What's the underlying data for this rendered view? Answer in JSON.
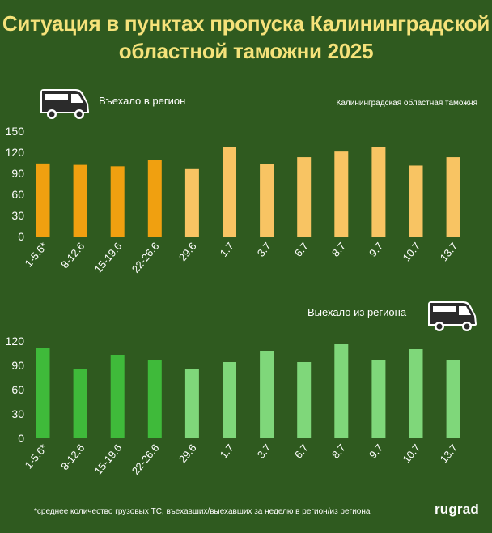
{
  "title_lines": [
    "Ситуация в пунктах пропуска Калининградской",
    "областной таможни 2025"
  ],
  "source": "Калининградская областная таможня",
  "footnote": "*среднее количество грузовых ТС, въехавших/выехавших за неделю в регион/из региона",
  "brand": "rugrad",
  "icons": {
    "truck": "van-icon"
  },
  "colors": {
    "background": "#2f5a1f",
    "title": "#f5e27a",
    "entered_weekly": "#f0a010",
    "entered_daily": "#f8c463",
    "exited_weekly": "#3fba3a",
    "exited_daily": "#7fd77a"
  },
  "chart_data": [
    {
      "type": "bar",
      "legend": "Въехало в регион",
      "categories": [
        "1-5.6*",
        "8-12.6",
        "15-19.6",
        "22-26.6",
        "29.6",
        "1.7",
        "3.7",
        "6.7",
        "8.7",
        "9.7",
        "10.7",
        "13.7"
      ],
      "values": [
        104,
        102,
        100,
        109,
        96,
        128,
        103,
        113,
        121,
        127,
        101,
        113
      ],
      "yticks": [
        0,
        30,
        60,
        90,
        120,
        150
      ],
      "ylim": [
        0,
        150
      ],
      "grid": false
    },
    {
      "type": "bar",
      "legend": "Выехало из региона",
      "categories": [
        "1-5.6*",
        "8-12.6",
        "15-19.6",
        "22-26.6",
        "29.6",
        "1.7",
        "3.7",
        "6.7",
        "8.7",
        "9.7",
        "10.7",
        "13.7"
      ],
      "values": [
        111,
        85,
        103,
        96,
        86,
        94,
        108,
        94,
        116,
        97,
        110,
        96
      ],
      "yticks": [
        0,
        30,
        60,
        90,
        120
      ],
      "ylim": [
        0,
        120
      ],
      "grid": false
    }
  ]
}
